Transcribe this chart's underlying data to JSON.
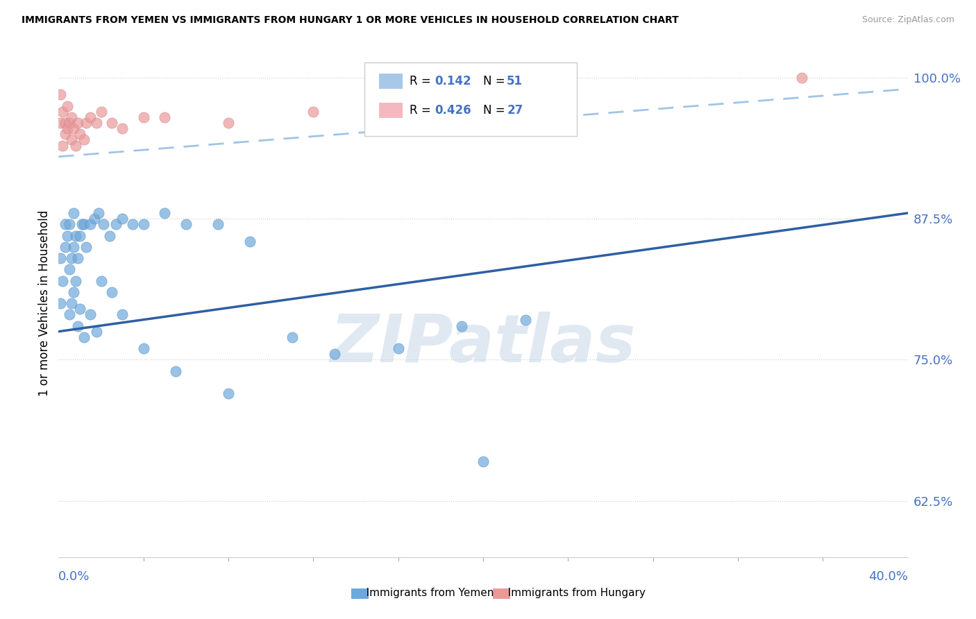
{
  "title": "IMMIGRANTS FROM YEMEN VS IMMIGRANTS FROM HUNGARY 1 OR MORE VEHICLES IN HOUSEHOLD CORRELATION CHART",
  "source": "Source: ZipAtlas.com",
  "ylabel": "1 or more Vehicles in Household",
  "color_yemen": "#6fa8dc",
  "color_hungary": "#ea9999",
  "color_trendline_yemen": "#2e5fa3",
  "color_trendline_hungary": "#a0c4e8",
  "color_text_blue": "#4472c4",
  "watermark": "ZIPatlas",
  "xmin": 0.0,
  "xmax": 0.4,
  "ymin": 0.575,
  "ymax": 1.025,
  "ytick_vals": [
    1.0,
    0.875,
    0.75,
    0.625
  ],
  "ytick_labels": [
    "100.0%",
    "87.5%",
    "75.0%",
    "62.5%"
  ],
  "legend_entries": [
    {
      "label_R": "R = ",
      "R_val": "0.142",
      "label_N": "  N = ",
      "N_val": "51",
      "color": "#a8c8e8"
    },
    {
      "label_R": "R = ",
      "R_val": "0.426",
      "label_N": "  N = ",
      "N_val": "27",
      "color": "#f4b8c0"
    }
  ],
  "yemen_x": [
    0.001,
    0.001,
    0.002,
    0.003,
    0.003,
    0.004,
    0.005,
    0.005,
    0.006,
    0.007,
    0.007,
    0.008,
    0.009,
    0.01,
    0.011,
    0.012,
    0.013,
    0.015,
    0.017,
    0.019,
    0.021,
    0.024,
    0.027,
    0.03,
    0.035,
    0.04,
    0.05,
    0.06,
    0.075,
    0.09,
    0.11,
    0.13,
    0.16,
    0.19,
    0.22,
    0.005,
    0.006,
    0.007,
    0.008,
    0.009,
    0.01,
    0.012,
    0.015,
    0.018,
    0.02,
    0.025,
    0.03,
    0.04,
    0.055,
    0.08,
    0.2
  ],
  "yemen_y": [
    0.84,
    0.8,
    0.82,
    0.87,
    0.85,
    0.86,
    0.83,
    0.87,
    0.84,
    0.85,
    0.88,
    0.86,
    0.84,
    0.86,
    0.87,
    0.87,
    0.85,
    0.87,
    0.875,
    0.88,
    0.87,
    0.86,
    0.87,
    0.875,
    0.87,
    0.87,
    0.88,
    0.87,
    0.87,
    0.855,
    0.77,
    0.755,
    0.76,
    0.78,
    0.785,
    0.79,
    0.8,
    0.81,
    0.82,
    0.78,
    0.795,
    0.77,
    0.79,
    0.775,
    0.82,
    0.81,
    0.79,
    0.76,
    0.74,
    0.72,
    0.66
  ],
  "hungary_x": [
    0.001,
    0.001,
    0.002,
    0.002,
    0.003,
    0.003,
    0.004,
    0.004,
    0.005,
    0.006,
    0.006,
    0.007,
    0.008,
    0.009,
    0.01,
    0.012,
    0.013,
    0.015,
    0.018,
    0.02,
    0.025,
    0.03,
    0.04,
    0.05,
    0.08,
    0.12,
    0.35
  ],
  "hungary_y": [
    0.96,
    0.985,
    0.94,
    0.97,
    0.95,
    0.96,
    0.955,
    0.975,
    0.96,
    0.945,
    0.965,
    0.955,
    0.94,
    0.96,
    0.95,
    0.945,
    0.96,
    0.965,
    0.96,
    0.97,
    0.96,
    0.955,
    0.965,
    0.965,
    0.96,
    0.97,
    1.0
  ],
  "yemen_trend_x0": 0.0,
  "yemen_trend_y0": 0.775,
  "yemen_trend_x1": 0.4,
  "yemen_trend_y1": 0.88,
  "hungary_trend_x0": 0.0,
  "hungary_trend_y0": 0.93,
  "hungary_trend_x1": 0.4,
  "hungary_trend_y1": 0.99
}
